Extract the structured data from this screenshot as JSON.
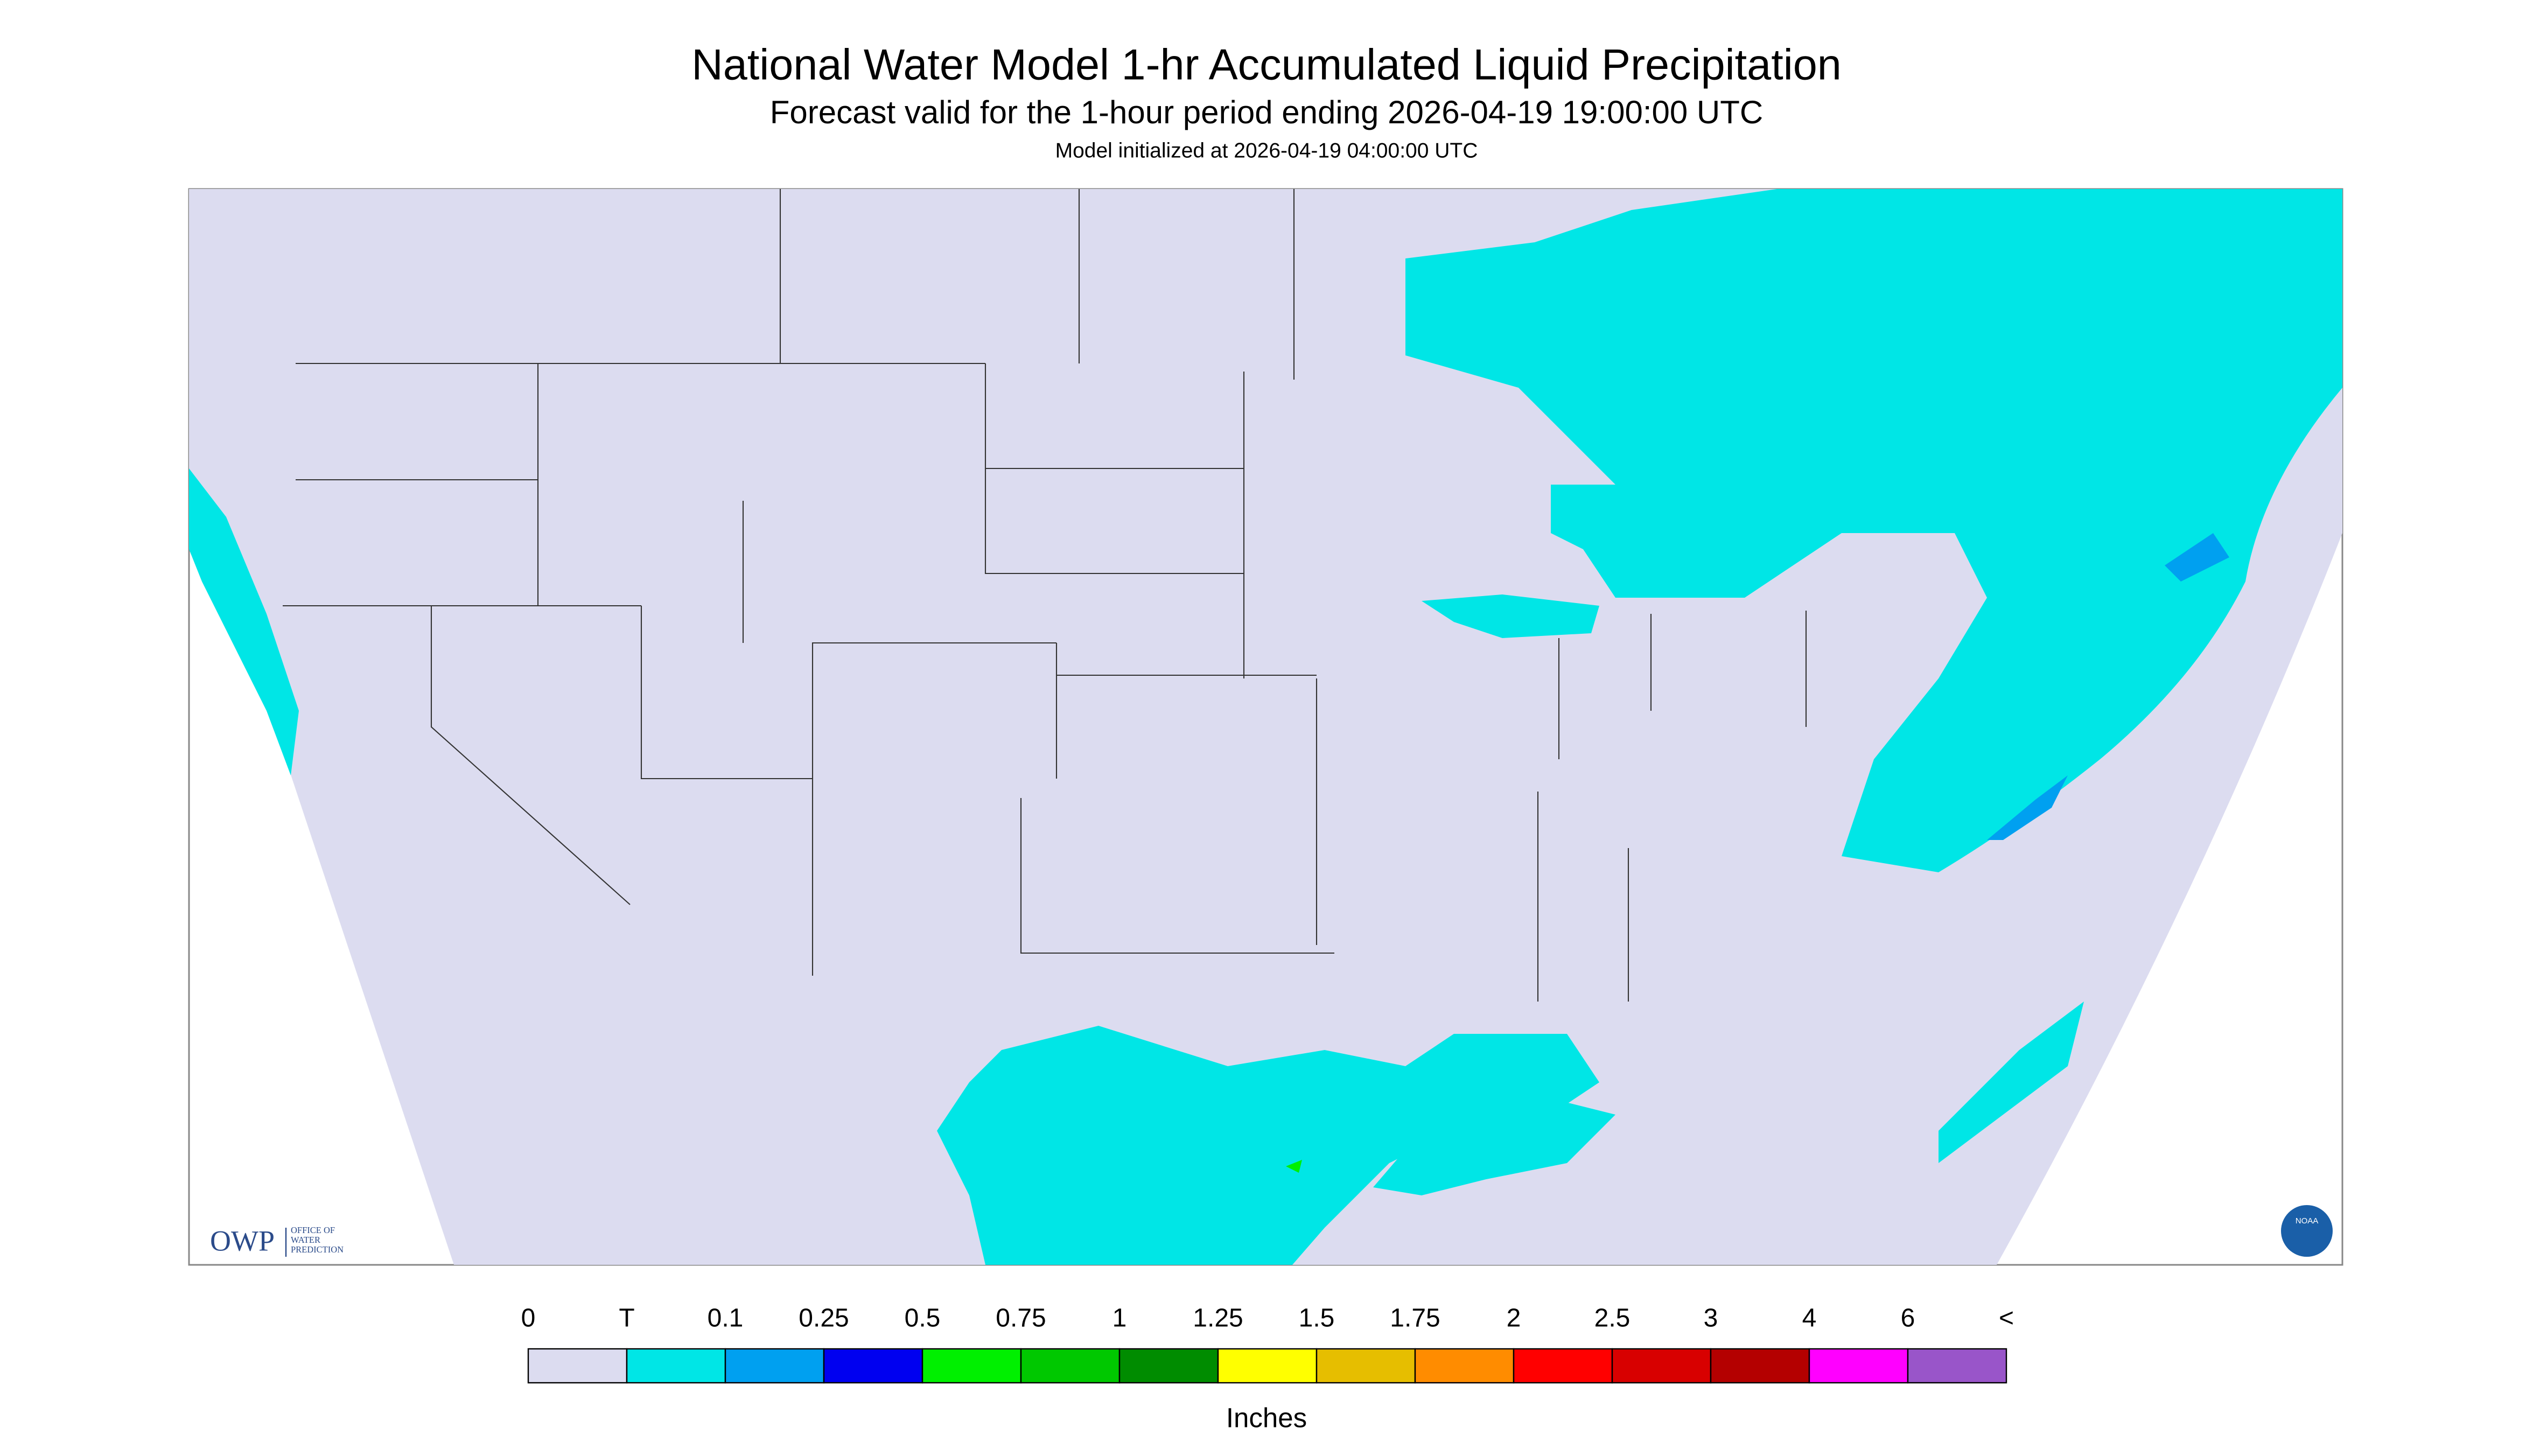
{
  "header": {
    "title": "National Water Model 1-hr Accumulated Liquid Precipitation",
    "subtitle": "Forecast valid for the 1-hour period ending 2026-04-19 19:00:00 UTC",
    "note": "Model initialized at 2026-04-19 04:00:00 UTC"
  },
  "legend": {
    "labels": [
      "0",
      "T",
      "0.1",
      "0.25",
      "0.5",
      "0.75",
      "1",
      "1.25",
      "1.5",
      "1.75",
      "2",
      "2.5",
      "3",
      "4",
      "6",
      "<"
    ],
    "colors": [
      "#dcdcf0",
      "#00e6e6",
      "#00a0f0",
      "#0000f0",
      "#00f000",
      "#00c800",
      "#008c00",
      "#ffff00",
      "#e6be00",
      "#ff8c00",
      "#ff0000",
      "#d80000",
      "#b40000",
      "#ff00ff",
      "#9955c9"
    ],
    "unit": "Inches"
  },
  "logo": {
    "acronym": "OWP",
    "name_lines": [
      "OFFICE OF",
      "WATER",
      "PREDICTION"
    ],
    "agency": "NOAA"
  }
}
